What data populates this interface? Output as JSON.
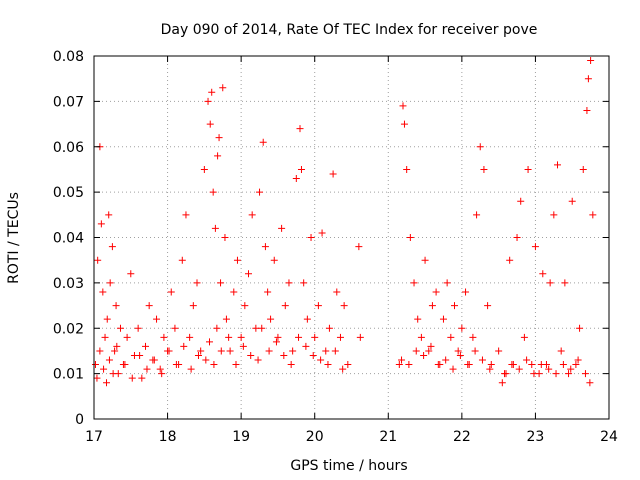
{
  "chart_data": {
    "type": "scatter",
    "title": "Day 090 of 2014, Rate Of TEC Index for receiver pove",
    "xlabel": "GPS time / hours",
    "ylabel": "ROTI / TECUs",
    "xlim": [
      17,
      24
    ],
    "ylim": [
      0,
      0.08
    ],
    "xticks": [
      "17",
      "18",
      "19",
      "20",
      "21",
      "22",
      "23",
      "24"
    ],
    "yticks": [
      "0",
      "0.01",
      "0.02",
      "0.03",
      "0.04",
      "0.05",
      "0.06",
      "0.07",
      "0.08"
    ],
    "grid": true,
    "marker": "+",
    "color": "#ff0000",
    "series": [
      {
        "name": "ROTI",
        "x": [
          17.02,
          17.05,
          17.08,
          17.1,
          17.12,
          17.15,
          17.18,
          17.2,
          17.22,
          17.25,
          17.28,
          17.3,
          17.33,
          17.36,
          17.4,
          17.45,
          17.5,
          17.55,
          17.6,
          17.65,
          17.7,
          17.75,
          17.8,
          17.85,
          17.9,
          17.95,
          18.0,
          18.05,
          18.1,
          18.15,
          18.2,
          18.25,
          18.3,
          18.35,
          18.4,
          18.45,
          18.5,
          18.55,
          18.58,
          18.6,
          18.62,
          18.65,
          18.68,
          18.7,
          18.72,
          18.75,
          18.78,
          18.8,
          18.85,
          18.9,
          18.95,
          19.0,
          19.05,
          19.1,
          19.15,
          19.2,
          19.25,
          19.3,
          19.33,
          19.36,
          19.4,
          19.45,
          19.5,
          19.55,
          19.6,
          19.65,
          19.7,
          19.75,
          19.8,
          19.82,
          19.85,
          19.9,
          19.95,
          20.0,
          20.05,
          20.1,
          20.15,
          20.2,
          20.25,
          20.3,
          20.35,
          20.4,
          20.45,
          20.6,
          20.62,
          21.15,
          21.2,
          21.22,
          21.25,
          21.3,
          21.35,
          21.4,
          21.45,
          21.5,
          21.55,
          21.6,
          21.65,
          21.7,
          21.75,
          21.8,
          21.85,
          21.9,
          21.95,
          22.0,
          22.05,
          22.1,
          22.15,
          22.2,
          22.25,
          22.3,
          22.35,
          22.4,
          22.5,
          22.55,
          22.6,
          22.65,
          22.7,
          22.75,
          22.8,
          22.85,
          22.9,
          22.95,
          23.0,
          23.05,
          23.1,
          23.15,
          23.2,
          23.25,
          23.3,
          23.35,
          23.4,
          23.45,
          23.5,
          23.55,
          23.6,
          23.65,
          23.7,
          23.72,
          23.75,
          23.78,
          17.04,
          17.08,
          17.13,
          17.17,
          17.21,
          17.26,
          17.31,
          17.42,
          17.52,
          17.62,
          17.72,
          17.82,
          17.92,
          18.02,
          18.12,
          18.22,
          18.32,
          18.42,
          18.52,
          18.57,
          18.63,
          18.67,
          18.73,
          18.83,
          18.93,
          19.03,
          19.13,
          19.23,
          19.28,
          19.38,
          19.48,
          19.58,
          19.68,
          19.78,
          19.88,
          19.98,
          20.08,
          20.18,
          20.28,
          20.38,
          21.18,
          21.28,
          21.38,
          21.48,
          21.58,
          21.68,
          21.78,
          21.88,
          21.98,
          22.08,
          22.18,
          22.28,
          22.38,
          22.58,
          22.68,
          22.78,
          22.88,
          22.98,
          23.08,
          23.18,
          23.28,
          23.38,
          23.48,
          23.58,
          23.68,
          23.74
        ],
        "y": [
          0.012,
          0.035,
          0.06,
          0.043,
          0.028,
          0.018,
          0.022,
          0.045,
          0.03,
          0.038,
          0.015,
          0.025,
          0.01,
          0.02,
          0.012,
          0.018,
          0.032,
          0.014,
          0.02,
          0.009,
          0.016,
          0.025,
          0.013,
          0.022,
          0.011,
          0.018,
          0.015,
          0.028,
          0.02,
          0.012,
          0.035,
          0.045,
          0.018,
          0.025,
          0.03,
          0.015,
          0.055,
          0.07,
          0.065,
          0.072,
          0.05,
          0.042,
          0.058,
          0.062,
          0.03,
          0.073,
          0.04,
          0.022,
          0.015,
          0.028,
          0.035,
          0.018,
          0.025,
          0.032,
          0.045,
          0.02,
          0.05,
          0.061,
          0.038,
          0.028,
          0.022,
          0.035,
          0.018,
          0.042,
          0.025,
          0.03,
          0.015,
          0.053,
          0.064,
          0.055,
          0.03,
          0.022,
          0.04,
          0.018,
          0.025,
          0.041,
          0.015,
          0.02,
          0.054,
          0.028,
          0.018,
          0.025,
          0.012,
          0.038,
          0.018,
          0.012,
          0.069,
          0.065,
          0.055,
          0.04,
          0.03,
          0.022,
          0.018,
          0.035,
          0.015,
          0.025,
          0.028,
          0.012,
          0.022,
          0.03,
          0.018,
          0.025,
          0.015,
          0.02,
          0.028,
          0.012,
          0.018,
          0.045,
          0.06,
          0.055,
          0.025,
          0.012,
          0.015,
          0.008,
          0.01,
          0.035,
          0.012,
          0.04,
          0.048,
          0.018,
          0.055,
          0.012,
          0.038,
          0.01,
          0.032,
          0.012,
          0.03,
          0.045,
          0.056,
          0.015,
          0.03,
          0.01,
          0.048,
          0.012,
          0.02,
          0.055,
          0.068,
          0.075,
          0.079,
          0.045,
          0.009,
          0.015,
          0.011,
          0.008,
          0.013,
          0.01,
          0.016,
          0.012,
          0.009,
          0.014,
          0.011,
          0.013,
          0.01,
          0.015,
          0.012,
          0.016,
          0.011,
          0.014,
          0.013,
          0.017,
          0.012,
          0.02,
          0.015,
          0.018,
          0.012,
          0.016,
          0.014,
          0.013,
          0.02,
          0.015,
          0.017,
          0.014,
          0.012,
          0.018,
          0.016,
          0.014,
          0.013,
          0.012,
          0.015,
          0.011,
          0.013,
          0.012,
          0.015,
          0.014,
          0.016,
          0.012,
          0.013,
          0.011,
          0.014,
          0.012,
          0.015,
          0.013,
          0.011,
          0.01,
          0.012,
          0.011,
          0.013,
          0.01,
          0.012,
          0.011,
          0.01,
          0.012,
          0.011,
          0.013,
          0.01,
          0.008
        ]
      }
    ]
  }
}
